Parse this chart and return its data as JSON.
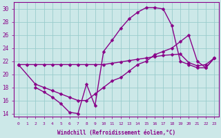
{
  "xlabel": "Windchill (Refroidissement éolien,°C)",
  "bg_color": "#cce8e8",
  "grid_color": "#99cccc",
  "line_color": "#880088",
  "xlim": [
    -0.5,
    23.5
  ],
  "ylim": [
    13.5,
    31
  ],
  "xticks": [
    0,
    1,
    2,
    3,
    4,
    5,
    6,
    7,
    8,
    9,
    10,
    11,
    12,
    13,
    14,
    15,
    16,
    17,
    18,
    19,
    20,
    21,
    22,
    23
  ],
  "yticks": [
    14,
    16,
    18,
    20,
    22,
    24,
    26,
    28,
    30
  ],
  "line1_x": [
    0,
    1,
    2,
    3,
    4,
    5,
    6,
    7,
    8,
    9,
    10,
    11,
    12,
    13,
    14,
    15,
    16,
    17,
    18,
    19,
    20,
    21,
    22,
    23
  ],
  "line1_y": [
    21.5,
    21.5,
    21.5,
    21.5,
    21.5,
    21.5,
    21.5,
    21.5,
    21.5,
    21.5,
    21.5,
    21.7,
    21.9,
    22.1,
    22.3,
    22.5,
    22.7,
    22.9,
    23.0,
    23.1,
    21.8,
    21.3,
    21.5,
    22.5
  ],
  "line2_x": [
    2,
    3,
    4,
    5,
    6,
    7,
    8,
    9,
    10,
    11,
    12,
    13,
    14,
    15,
    16,
    17,
    18,
    19,
    20,
    21,
    22,
    23
  ],
  "line2_y": [
    18.0,
    17.3,
    16.5,
    15.5,
    14.2,
    14.0,
    18.5,
    15.2,
    23.5,
    25.2,
    27.0,
    28.5,
    29.5,
    30.2,
    30.2,
    30.0,
    27.5,
    22.0,
    21.5,
    21.0,
    21.0,
    22.5
  ],
  "line3_x": [
    0,
    2,
    3,
    4,
    5,
    6,
    7,
    8,
    9,
    10,
    11,
    12,
    13,
    14,
    15,
    16,
    17,
    18,
    19,
    20,
    21,
    22,
    23
  ],
  "line3_y": [
    21.5,
    18.5,
    18.0,
    17.5,
    17.0,
    16.5,
    16.0,
    16.0,
    17.0,
    18.0,
    19.0,
    19.5,
    20.5,
    21.5,
    22.0,
    23.0,
    23.5,
    24.0,
    25.0,
    26.0,
    22.0,
    21.0,
    22.5
  ],
  "marker": "D",
  "marker_size": 2.5,
  "linewidth": 1.0
}
